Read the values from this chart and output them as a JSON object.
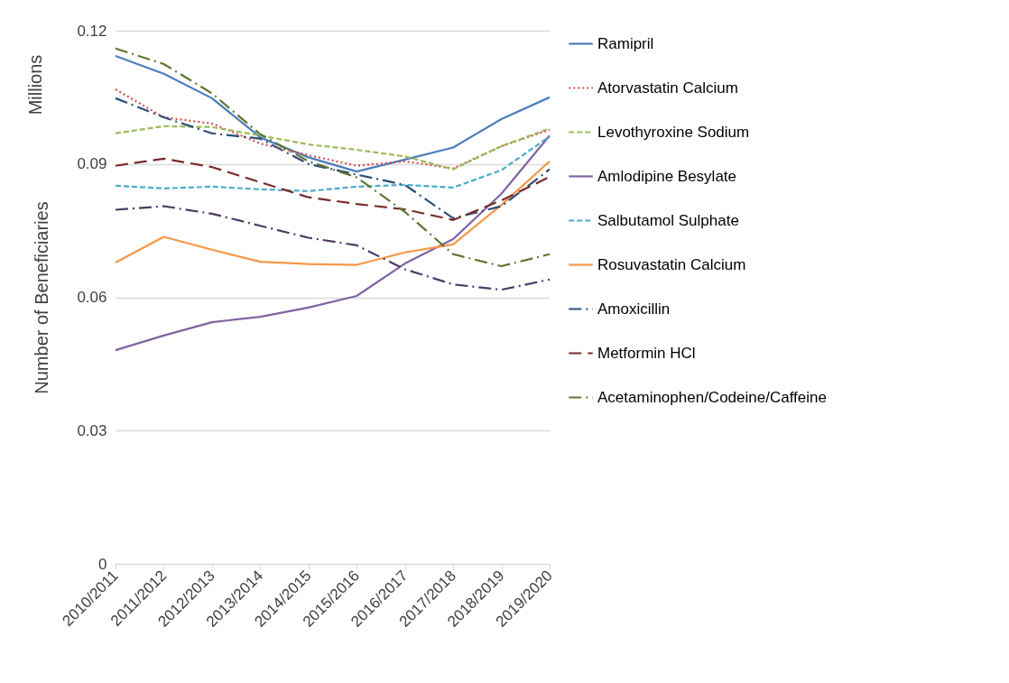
{
  "chart_data": {
    "type": "line",
    "ylabel": "Number of Beneficiaries",
    "annotations": [
      "Millions"
    ],
    "categories": [
      "2010/2011",
      "2011/2012",
      "2012/2013",
      "2013/2014",
      "2014/2015",
      "2015/2016",
      "2016/2017",
      "2017/2018",
      "2018/2019",
      "2019/2020"
    ],
    "ylim": [
      0,
      0.12
    ],
    "yticks": [
      0,
      0.03,
      0.06,
      0.09,
      0.12
    ],
    "grid": "y",
    "legend": "right",
    "marker": "none",
    "series": [
      {
        "name": "Ramipril",
        "color": "#4a7ebb",
        "line_style": "solid",
        "values": [
          0.1143,
          0.1103,
          0.1048,
          0.096,
          0.0915,
          0.0883,
          0.091,
          0.0937,
          0.1001,
          0.105
        ]
      },
      {
        "name": "Atorvastatin Calcium",
        "color": "#d0504d",
        "line_style": "dotted",
        "values": [
          0.1068,
          0.1005,
          0.0991,
          0.0946,
          0.092,
          0.0896,
          0.0906,
          0.089,
          0.094,
          0.0977
        ]
      },
      {
        "name": "Levothyroxine Sodium",
        "color": "#9bbb59",
        "line_style": "dashed",
        "values": [
          0.0969,
          0.0985,
          0.0983,
          0.0964,
          0.0944,
          0.0932,
          0.0917,
          0.0888,
          0.094,
          0.098
        ]
      },
      {
        "name": "Amlodipine Besylate",
        "color": "#8064a2",
        "line_style": "solid",
        "values": [
          0.0481,
          0.0514,
          0.0544,
          0.0556,
          0.0577,
          0.0603,
          0.0676,
          0.0731,
          0.0833,
          0.0964
        ]
      },
      {
        "name": "Salbutamol Sulphate",
        "color": "#4bacc6",
        "line_style": "dashed",
        "values": [
          0.0851,
          0.0845,
          0.0849,
          0.0843,
          0.0839,
          0.0849,
          0.0853,
          0.0847,
          0.0886,
          0.0962
        ]
      },
      {
        "name": "Rosuvastatin Calcium",
        "color": "#f79646",
        "line_style": "solid",
        "values": [
          0.0678,
          0.0736,
          0.0707,
          0.068,
          0.0675,
          0.0673,
          0.0701,
          0.0719,
          0.0808,
          0.0906
        ]
      },
      {
        "name": "Amoxicillin",
        "color": "#2c4d75",
        "line_style": "dashdot",
        "values": [
          0.1048,
          0.1005,
          0.0969,
          0.0957,
          0.09,
          0.0876,
          0.0853,
          0.0778,
          0.0805,
          0.0888
        ]
      },
      {
        "name": "Metformin HCl",
        "color": "#772c2a",
        "line_style": "longdash",
        "values": [
          0.0896,
          0.0912,
          0.0893,
          0.0859,
          0.0825,
          0.081,
          0.0798,
          0.0774,
          0.0818,
          0.0871
        ]
      },
      {
        "name": "Acetaminophen/Codeine/Caffeine",
        "color": "#5f7530",
        "line_style": "dashdot",
        "values": [
          0.116,
          0.1125,
          0.1059,
          0.0967,
          0.0906,
          0.087,
          0.0792,
          0.0697,
          0.067,
          0.0697
        ]
      },
      {
        "color": "#4d3b62",
        "line_style": "dashdot",
        "values": [
          0.0797,
          0.0805,
          0.0788,
          0.0761,
          0.0734,
          0.0717,
          0.0663,
          0.0629,
          0.0617,
          0.064
        ]
      }
    ]
  }
}
